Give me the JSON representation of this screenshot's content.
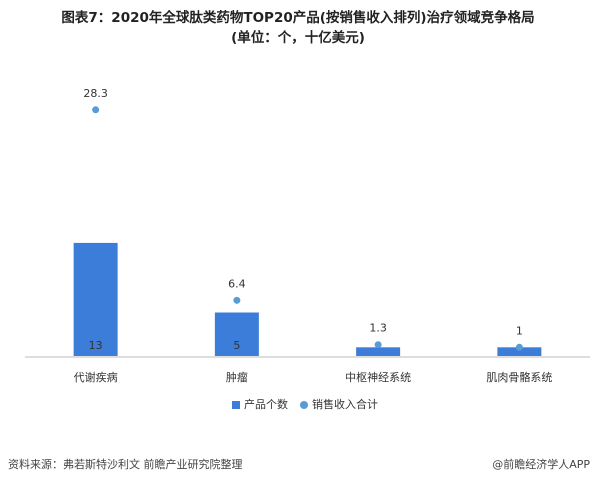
{
  "chart_data": {
    "type": "bar_dot",
    "title": "图表7：2020年全球肽类药物TOP20产品(按销售收入排列)治疗领域竞争格局",
    "subtitle": "(单位：个，十亿美元)",
    "categories": [
      "代谢疾病",
      "肿瘤",
      "中枢神经系统",
      "肌肉骨骼系统"
    ],
    "series": [
      {
        "name": "产品个数",
        "kind": "bar",
        "color": "#3b7dd8",
        "values": [
          13,
          5,
          1,
          1
        ],
        "value_labels": [
          "13",
          "5",
          null,
          null
        ]
      },
      {
        "name": "销售收入合计",
        "kind": "dot",
        "color": "#5b9bd5",
        "values": [
          28.3,
          6.4,
          1.3,
          1
        ]
      }
    ],
    "ylim": [
      0,
      30
    ],
    "source": "资料来源：弗若斯特沙利文 前瞻产业研究院整理",
    "credit": "@前瞻经济学人APP"
  }
}
